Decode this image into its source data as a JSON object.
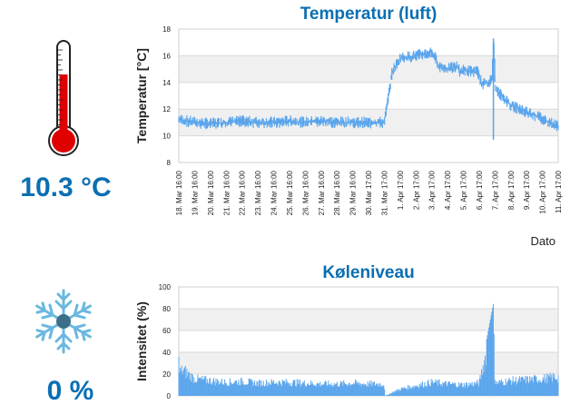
{
  "colors": {
    "accent": "#0a6fb2",
    "series": "#5aa5ec",
    "thermometer_fill": "#e00000",
    "band": "#f0f0f0"
  },
  "icons": {
    "thermometer": "thermometer-icon",
    "snowflake": "snowflake-icon"
  },
  "temperature": {
    "value_text": "10.3 °C"
  },
  "cooling": {
    "value_text": "0 %"
  },
  "chart_data": [
    {
      "type": "line",
      "title": "Temperatur (luft)",
      "xlabel": "Dato",
      "ylabel": "Temperatur [°C]",
      "ylim": [
        8,
        18
      ],
      "yticks": [
        8,
        10,
        12,
        14,
        16,
        18
      ],
      "grid": "alternating horizontal bands",
      "x_tick_labels": [
        "18. Mar 16:00",
        "19. Mar 16:00",
        "20. Mar 16:00",
        "21. Mar 16:00",
        "22. Mar 16:00",
        "23. Mar 16:00",
        "24. Mar 16:00",
        "25. Mar 16:00",
        "26. Mar 16:00",
        "27. Mar 16:00",
        "28. Mar 16:00",
        "29. Mar 16:00",
        "30. Mar 17:00",
        "31. Mar 17:00",
        "1. Apr 17:00",
        "2. Apr 17:00",
        "3. Apr 17:00",
        "4. Apr 17:00",
        "5. Apr 17:00",
        "6. Apr 17:00",
        "7. Apr 17:00",
        "8. Apr 17:00",
        "9. Apr 17:00",
        "10. Apr 17:00",
        "11. Apr 17:00"
      ],
      "series": [
        {
          "x": [
            0,
            1,
            2,
            3,
            4,
            5,
            6,
            7,
            8,
            9,
            10,
            11,
            12,
            13,
            13.2,
            13.5,
            14,
            15,
            15.8,
            16.0,
            16.5,
            17,
            17.6,
            17.8,
            18,
            18.9,
            19.2,
            19.8,
            19.9,
            20,
            21,
            22,
            23,
            23.8
          ],
          "y": [
            11.2,
            11.0,
            10.9,
            11.0,
            11.1,
            11.0,
            11.0,
            11.1,
            11.0,
            11.1,
            11.0,
            11.0,
            11.0,
            11.0,
            12.5,
            14.8,
            15.8,
            16.0,
            16.2,
            16.3,
            15.2,
            15.0,
            15.2,
            14.8,
            14.9,
            14.8,
            13.8,
            14.2,
            17.2,
            13.5,
            12.3,
            11.8,
            11.3,
            10.8
          ]
        }
      ]
    },
    {
      "type": "area",
      "title": "Køleniveau",
      "ylabel": "Intensitet (%)",
      "ylim": [
        0,
        100
      ],
      "yticks": [
        0,
        20,
        40,
        60,
        80,
        100
      ],
      "grid": "alternating horizontal bands",
      "series": [
        {
          "x": [
            0,
            0.05,
            0.3,
            1,
            2,
            3,
            4,
            5,
            6,
            7,
            8,
            9,
            10,
            11,
            12,
            13,
            13.05,
            14,
            15,
            15.5,
            16,
            17,
            18,
            19,
            19.9,
            20,
            20.05,
            21,
            22,
            23,
            23.8
          ],
          "y": [
            40,
            28,
            30,
            20,
            18,
            16,
            17,
            15,
            16,
            16,
            15,
            14,
            14,
            15,
            14,
            14,
            0,
            8,
            12,
            14,
            16,
            14,
            13,
            15,
            85,
            12,
            15,
            18,
            19,
            20,
            22
          ]
        }
      ]
    }
  ]
}
